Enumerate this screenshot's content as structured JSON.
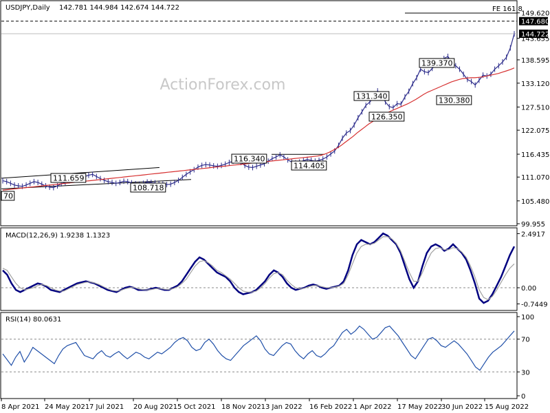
{
  "chart_data": [
    {
      "type": "line",
      "title": "USDJPY,Daily",
      "ohlc_header": "142.781 144.984 142.674 144.722",
      "watermark": "ActionForex.com",
      "ylim": [
        99.955,
        152.0
      ],
      "y_ticks": [
        "149.620",
        "143.655",
        "138.595",
        "133.120",
        "127.510",
        "122.075",
        "116.435",
        "111.070",
        "105.480",
        "99.955"
      ],
      "last_price_label": "144.722",
      "hline_label": "147.680",
      "fe_label": "FE 161.8",
      "x_ticks": [
        "8 Apr 2021",
        "24 May 2021",
        "7 Jul 2021",
        "20 Aug 2021",
        "5 Oct 2021",
        "18 Nov 2021",
        "3 Jan 2022",
        "16 Feb 2022",
        "1 Apr 2022",
        "17 May 2022",
        "30 Jun 2022",
        "15 Aug 2022"
      ],
      "annotations": [
        {
          "text": "111.659",
          "price": 111.659
        },
        {
          "text": "108.718",
          "price": 108.718
        },
        {
          "text": "70",
          "price": 108.0
        },
        {
          "text": "116.340",
          "price": 116.34
        },
        {
          "text": "114.405",
          "price": 114.405
        },
        {
          "text": "131.340",
          "price": 131.34
        },
        {
          "text": "126.350",
          "price": 126.35
        },
        {
          "text": "139.370",
          "price": 139.37
        },
        {
          "text": "130.380",
          "price": 130.38
        }
      ],
      "series": [
        {
          "name": "",
          "color": "#2a2a8a",
          "values": [
            110.2,
            110.0,
            109.6,
            109.2,
            109.0,
            108.9,
            109.2,
            109.6,
            110.0,
            109.8,
            109.4,
            109.0,
            108.7,
            108.6,
            109.0,
            109.5,
            109.8,
            110.2,
            110.4,
            110.6,
            110.9,
            111.2,
            111.5,
            111.7,
            111.2,
            110.7,
            110.3,
            110.0,
            109.8,
            109.6,
            109.8,
            110.1,
            110.0,
            109.7,
            109.5,
            109.4,
            109.6,
            109.9,
            109.8,
            109.7,
            109.5,
            109.4,
            109.3,
            109.4,
            109.8,
            110.3,
            111.0,
            111.7,
            112.3,
            112.8,
            113.4,
            113.8,
            114.0,
            113.9,
            113.7,
            113.6,
            113.8,
            114.1,
            114.5,
            114.8,
            115.0,
            114.5,
            113.8,
            113.4,
            113.3,
            113.6,
            113.9,
            114.2,
            114.8,
            115.4,
            115.8,
            116.3,
            115.8,
            115.1,
            114.6,
            114.4,
            114.6,
            114.9,
            115.2,
            115.0,
            114.8,
            115.0,
            115.3,
            115.8,
            116.5,
            117.2,
            118.5,
            120.2,
            121.4,
            122.0,
            123.3,
            125.0,
            126.4,
            127.9,
            128.7,
            129.8,
            131.3,
            130.4,
            128.7,
            127.6,
            127.4,
            128.3,
            128.2,
            129.9,
            131.2,
            133.0,
            134.4,
            136.4,
            135.8,
            135.6,
            136.6,
            137.4,
            138.2,
            138.9,
            139.4,
            138.0,
            137.2,
            136.4,
            135.2,
            134.0,
            133.5,
            132.7,
            133.8,
            135.0,
            134.8,
            135.2,
            136.4,
            137.2,
            138.1,
            139.2,
            141.4,
            144.7
          ]
        },
        {
          "name": "",
          "color": "#d62f2f",
          "values": [
            108.0,
            108.1,
            108.2,
            108.3,
            108.4,
            108.5,
            108.6,
            108.7,
            108.8,
            108.9,
            109.0,
            109.1,
            109.2,
            109.3,
            109.4,
            109.5,
            109.6,
            109.7,
            109.8,
            109.9,
            110.0,
            110.1,
            110.2,
            110.3,
            110.4,
            110.5,
            110.6,
            110.7,
            110.8,
            110.9,
            111.0,
            111.1,
            111.2,
            111.3,
            111.4,
            111.5,
            111.6,
            111.7,
            111.8,
            111.9,
            112.0,
            112.1,
            112.2,
            112.3,
            112.4,
            112.5,
            112.6,
            112.7,
            112.8,
            112.9,
            113.0,
            113.1,
            113.2,
            113.3,
            113.4,
            113.5,
            113.6,
            113.7,
            113.8,
            113.9,
            114.0,
            114.1,
            114.2,
            114.3,
            114.4,
            114.5,
            114.6,
            114.7,
            114.8,
            114.9,
            115.0,
            115.1,
            115.2,
            115.3,
            115.4,
            115.5,
            115.6,
            115.7,
            115.8,
            115.9,
            116.0,
            116.2,
            116.5,
            116.9,
            117.4,
            117.9,
            118.5,
            119.2,
            119.9,
            120.6,
            121.4,
            122.1,
            122.8,
            123.5,
            124.1,
            124.7,
            125.3,
            125.8,
            126.3,
            126.7,
            127.1,
            127.5,
            127.9,
            128.3,
            128.8,
            129.3,
            129.9,
            130.5,
            131.0,
            131.4,
            131.8,
            132.2,
            132.6,
            133.0,
            133.4,
            133.7,
            134.0,
            134.2,
            134.3,
            134.4,
            134.4,
            134.5,
            134.6,
            134.8,
            135.0,
            135.2,
            135.4,
            135.7,
            136.0,
            136.3,
            136.7
          ]
        }
      ]
    },
    {
      "type": "line",
      "title": "MACD(12,26,9) 1.9238 1.1323",
      "ylim": [
        -0.95,
        2.6
      ],
      "y_ticks": [
        "2.4917",
        "0.00",
        "-0.7449"
      ],
      "series": [
        {
          "name": "",
          "color": "#000080",
          "values": [
            0.8,
            0.6,
            0.2,
            -0.1,
            -0.2,
            -0.1,
            0.0,
            0.1,
            0.2,
            0.15,
            0.05,
            -0.1,
            -0.15,
            -0.2,
            -0.1,
            0.0,
            0.1,
            0.2,
            0.25,
            0.3,
            0.25,
            0.2,
            0.1,
            0.0,
            -0.1,
            -0.15,
            -0.2,
            -0.1,
            0.0,
            0.05,
            0.0,
            -0.1,
            -0.1,
            -0.1,
            -0.05,
            0.0,
            -0.05,
            -0.1,
            -0.1,
            0.0,
            0.1,
            0.3,
            0.6,
            0.9,
            1.2,
            1.4,
            1.3,
            1.1,
            0.9,
            0.7,
            0.6,
            0.5,
            0.3,
            0.0,
            -0.2,
            -0.3,
            -0.25,
            -0.2,
            -0.1,
            0.1,
            0.3,
            0.6,
            0.8,
            0.7,
            0.5,
            0.2,
            0.0,
            -0.1,
            -0.05,
            0.0,
            0.1,
            0.15,
            0.1,
            0.0,
            -0.05,
            0.0,
            0.05,
            0.1,
            0.3,
            0.8,
            1.5,
            2.0,
            2.2,
            2.1,
            2.0,
            2.1,
            2.3,
            2.5,
            2.4,
            2.2,
            2.0,
            1.6,
            1.0,
            0.4,
            0.0,
            0.3,
            1.0,
            1.6,
            1.9,
            2.0,
            1.9,
            1.7,
            1.8,
            2.0,
            1.8,
            1.6,
            1.3,
            0.8,
            0.2,
            -0.5,
            -0.7,
            -0.6,
            -0.3,
            0.1,
            0.5,
            1.0,
            1.5,
            1.9
          ]
        },
        {
          "name": "",
          "color": "#a0a0a0",
          "values": [
            0.9,
            0.8,
            0.5,
            0.2,
            0.0,
            -0.1,
            -0.05,
            0.0,
            0.1,
            0.15,
            0.1,
            0.0,
            -0.1,
            -0.15,
            -0.15,
            -0.05,
            0.05,
            0.15,
            0.2,
            0.25,
            0.27,
            0.22,
            0.15,
            0.05,
            -0.05,
            -0.12,
            -0.15,
            -0.12,
            -0.05,
            0.0,
            0.02,
            -0.05,
            -0.08,
            -0.1,
            -0.08,
            -0.04,
            -0.04,
            -0.07,
            -0.08,
            -0.04,
            0.05,
            0.2,
            0.4,
            0.7,
            1.0,
            1.2,
            1.25,
            1.15,
            1.0,
            0.8,
            0.7,
            0.55,
            0.4,
            0.2,
            0.0,
            -0.15,
            -0.2,
            -0.2,
            -0.15,
            0.0,
            0.2,
            0.45,
            0.65,
            0.7,
            0.6,
            0.35,
            0.15,
            0.0,
            -0.05,
            -0.02,
            0.05,
            0.1,
            0.1,
            0.05,
            0.0,
            0.0,
            0.03,
            0.08,
            0.2,
            0.6,
            1.1,
            1.6,
            1.9,
            2.0,
            2.0,
            2.05,
            2.2,
            2.35,
            2.35,
            2.25,
            2.05,
            1.7,
            1.2,
            0.7,
            0.3,
            0.3,
            0.7,
            1.2,
            1.6,
            1.8,
            1.85,
            1.75,
            1.75,
            1.85,
            1.8,
            1.65,
            1.4,
            1.0,
            0.5,
            -0.1,
            -0.45,
            -0.55,
            -0.4,
            -0.1,
            0.25,
            0.6,
            0.9,
            1.1
          ]
        }
      ]
    },
    {
      "type": "line",
      "title": "RSI(14) 80.0631",
      "ylim": [
        0,
        100
      ],
      "y_ticks": [
        "100",
        "70",
        "30",
        "0"
      ],
      "series": [
        {
          "name": "",
          "color": "#1f4fa8",
          "values": [
            52,
            45,
            38,
            48,
            55,
            42,
            50,
            60,
            56,
            52,
            48,
            44,
            40,
            50,
            58,
            62,
            64,
            66,
            58,
            50,
            48,
            46,
            52,
            56,
            50,
            48,
            52,
            55,
            50,
            46,
            50,
            54,
            52,
            48,
            46,
            50,
            54,
            52,
            56,
            60,
            66,
            70,
            72,
            68,
            60,
            56,
            58,
            66,
            70,
            64,
            56,
            50,
            46,
            44,
            50,
            56,
            62,
            66,
            70,
            74,
            68,
            58,
            52,
            50,
            56,
            62,
            66,
            64,
            56,
            50,
            46,
            52,
            56,
            50,
            48,
            52,
            58,
            62,
            70,
            78,
            82,
            76,
            80,
            86,
            82,
            76,
            70,
            72,
            78,
            84,
            86,
            80,
            74,
            66,
            58,
            50,
            46,
            54,
            62,
            70,
            72,
            68,
            62,
            60,
            64,
            68,
            64,
            58,
            52,
            44,
            36,
            32,
            40,
            48,
            54,
            58,
            62,
            68,
            74,
            80
          ]
        }
      ]
    }
  ]
}
